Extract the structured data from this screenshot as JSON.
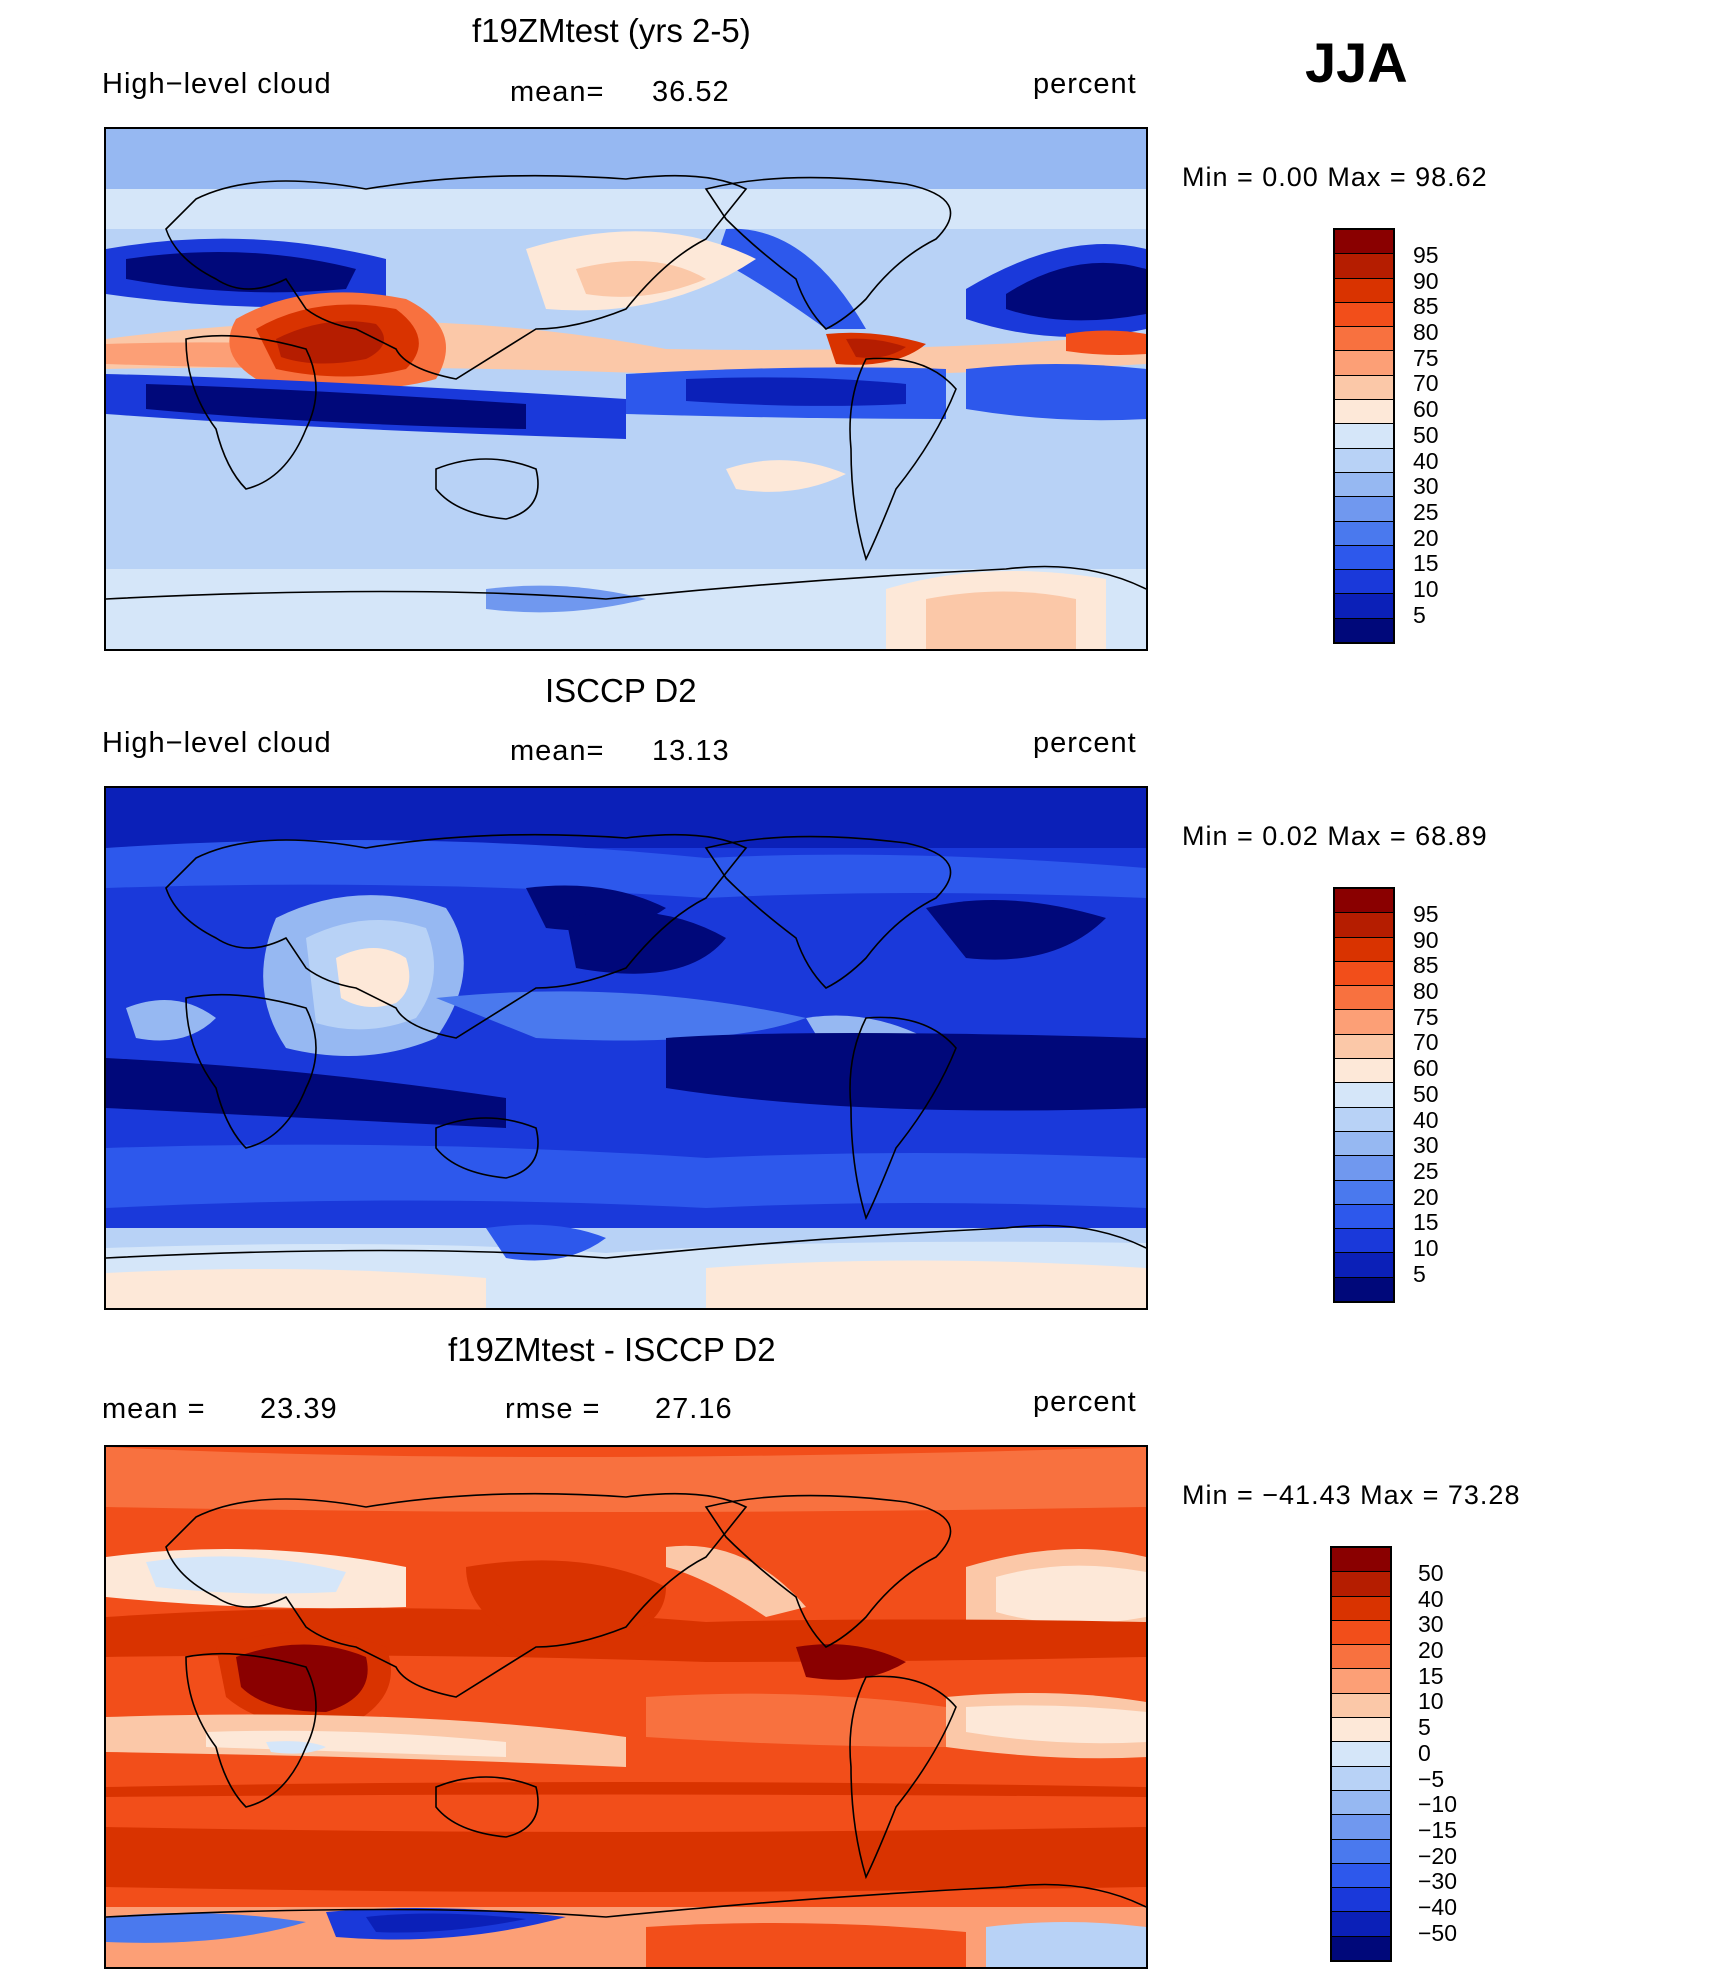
{
  "season": "JJA",
  "palette_main": [
    "#8a0000",
    "#b51d00",
    "#d93300",
    "#f24e1a",
    "#f8713f",
    "#fc9f76",
    "#fbc8a8",
    "#fde8d8",
    "#d5e6f9",
    "#b8d2f6",
    "#96b8f2",
    "#7098ef",
    "#4a79ee",
    "#2d58ec",
    "#1a39da",
    "#0b20b8",
    "#00087a"
  ],
  "palette_diff": [
    "#8a0000",
    "#b51d00",
    "#d93300",
    "#f24e1a",
    "#f8713f",
    "#fc9f76",
    "#fbc8a8",
    "#fde8d8",
    "#d5e6f9",
    "#b8d2f6",
    "#96b8f2",
    "#7098ef",
    "#4a79ee",
    "#2d58ec",
    "#1a39da",
    "#0b20b8",
    "#00087a"
  ],
  "panels": [
    {
      "title": "f19ZMtest (yrs 2-5)",
      "left": "High−level cloud",
      "center_label": "mean=",
      "center_value": "36.52",
      "right": "percent",
      "minmax": "Min  =      0.00  Max  =     98.62",
      "ticks": [
        "95",
        "90",
        "85",
        "80",
        "75",
        "70",
        "60",
        "50",
        "40",
        "30",
        "25",
        "20",
        "15",
        "10",
        "5"
      ]
    },
    {
      "title": "ISCCP D2",
      "left": "High−level cloud",
      "center_label": "mean=",
      "center_value": "13.13",
      "right": "percent",
      "minmax": "Min  =      0.02  Max  =     68.89",
      "ticks": [
        "95",
        "90",
        "85",
        "80",
        "75",
        "70",
        "60",
        "50",
        "40",
        "30",
        "25",
        "20",
        "15",
        "10",
        "5"
      ]
    },
    {
      "title": "f19ZMtest - ISCCP D2",
      "left_label": "mean  =",
      "left_value": "23.39",
      "center_label": "rmse  =",
      "center_value": "27.16",
      "right": "percent",
      "minmax": "Min  = −41.43  Max  =     73.28",
      "ticks": [
        "50",
        "40",
        "30",
        "20",
        "15",
        "10",
        "5",
        "0",
        "−5",
        "−10",
        "−15",
        "−20",
        "−30",
        "−40",
        "−50"
      ]
    }
  ]
}
